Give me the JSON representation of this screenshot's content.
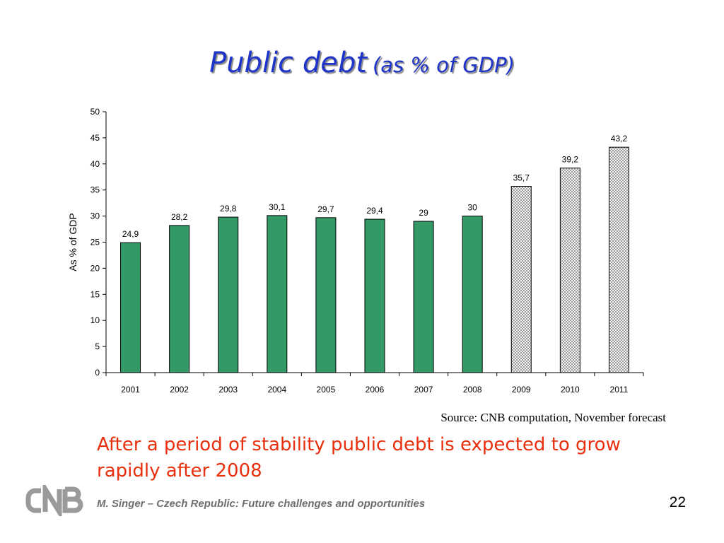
{
  "slide": {
    "title_main": "Public debt",
    "title_sub": "(as % of GDP)",
    "source": "Source: CNB computation, November forecast",
    "message": "After a period of stability public debt is expected to grow rapidly after 2008",
    "logo_text": "CNB",
    "footer": "M. Singer – Czech Republic: Future challenges and opportunities",
    "page_number": "22"
  },
  "colors": {
    "title": "#1f35c9",
    "bar_actual": "#339966",
    "forecast_pattern": "#9c9c9c",
    "message": "#e8300e"
  },
  "chart_data": {
    "type": "bar",
    "categories": [
      "2001",
      "2002",
      "2003",
      "2004",
      "2005",
      "2006",
      "2007",
      "2008",
      "2009",
      "2010",
      "2011"
    ],
    "values": [
      24.9,
      28.2,
      29.8,
      30.1,
      29.7,
      29.4,
      29,
      30,
      35.7,
      39.2,
      43.2
    ],
    "data_labels": [
      "24,9",
      "28,2",
      "29,8",
      "30,1",
      "29,7",
      "29,4",
      "29",
      "30",
      "35,7",
      "39,2",
      "43,2"
    ],
    "forecast_from_index": 8,
    "ylabel": "As % of GDP",
    "xlabel": "",
    "ylim": [
      0,
      50
    ],
    "yticks": [
      0,
      5,
      10,
      15,
      20,
      25,
      30,
      35,
      40,
      45,
      50
    ],
    "grid": false,
    "legend": "none"
  }
}
